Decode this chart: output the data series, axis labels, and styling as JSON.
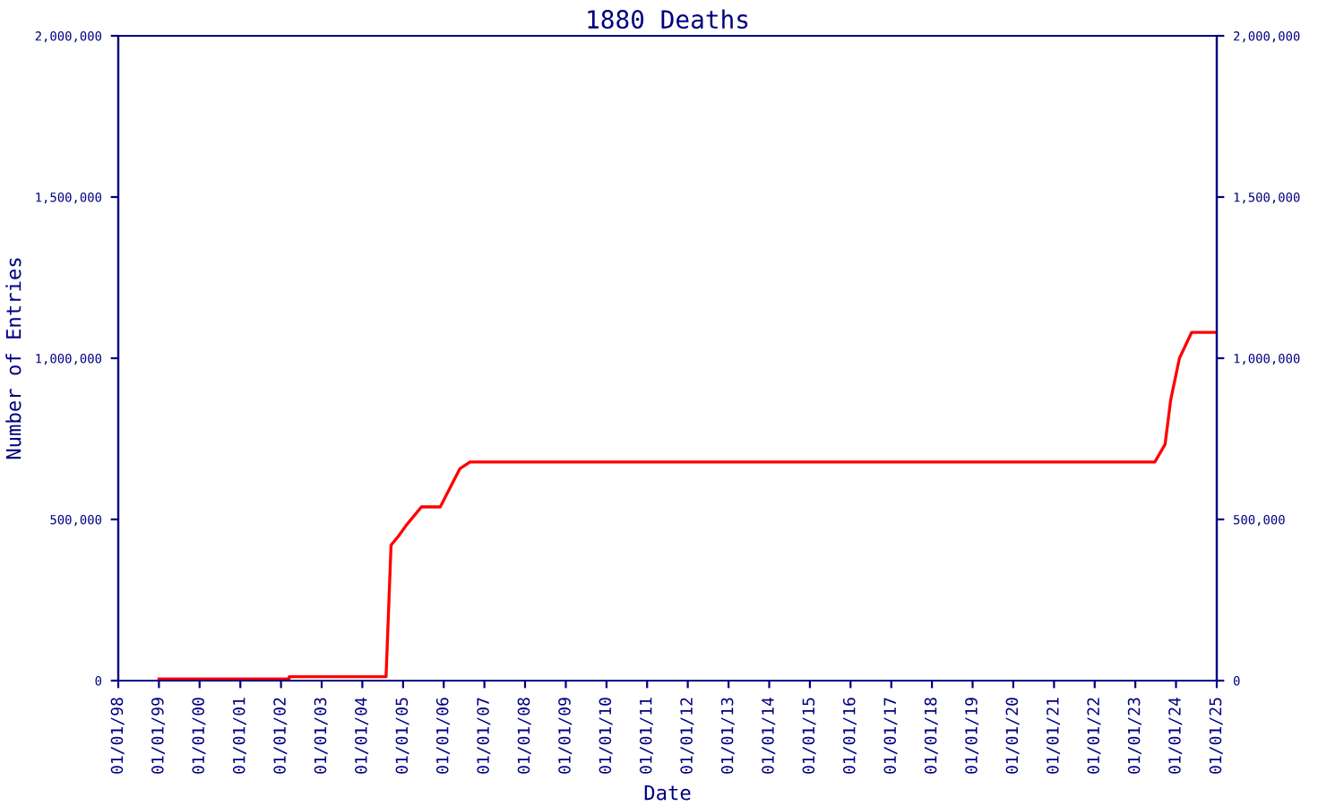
{
  "chart_data": {
    "type": "line",
    "title": "1880 Deaths",
    "xlabel": "Date",
    "ylabel": "Number of Entries",
    "x": [
      "1999-01-01",
      "2002-03-15",
      "2002-03-16",
      "2004-08-01",
      "2004-09-15",
      "2004-11-20",
      "2005-02-01",
      "2005-06-15",
      "2005-12-01",
      "2006-05-25",
      "2006-08-25",
      "2023-06-25",
      "2023-09-25",
      "2023-11-15",
      "2024-02-01",
      "2024-05-20",
      "2025-01-01"
    ],
    "series": [
      {
        "color": "#ff0000",
        "values": [
          5000,
          5000,
          12000,
          12000,
          420000,
          448000,
          483000,
          539000,
          539000,
          657000,
          678000,
          678000,
          733000,
          872000,
          1000000,
          1080000,
          1080000
        ]
      }
    ],
    "xlim": [
      "1998-01-01",
      "2025-01-01"
    ],
    "xticks": [
      {
        "value": "1998-01-01",
        "label": "01/01/98"
      },
      {
        "value": "1999-01-01",
        "label": "01/01/99"
      },
      {
        "value": "2000-01-01",
        "label": "01/01/00"
      },
      {
        "value": "2001-01-01",
        "label": "01/01/01"
      },
      {
        "value": "2002-01-01",
        "label": "01/01/02"
      },
      {
        "value": "2003-01-01",
        "label": "01/01/03"
      },
      {
        "value": "2004-01-01",
        "label": "01/01/04"
      },
      {
        "value": "2005-01-01",
        "label": "01/01/05"
      },
      {
        "value": "2006-01-01",
        "label": "01/01/06"
      },
      {
        "value": "2007-01-01",
        "label": "01/01/07"
      },
      {
        "value": "2008-01-01",
        "label": "01/01/08"
      },
      {
        "value": "2009-01-01",
        "label": "01/01/09"
      },
      {
        "value": "2010-01-01",
        "label": "01/01/10"
      },
      {
        "value": "2011-01-01",
        "label": "01/01/11"
      },
      {
        "value": "2012-01-01",
        "label": "01/01/12"
      },
      {
        "value": "2013-01-01",
        "label": "01/01/13"
      },
      {
        "value": "2014-01-01",
        "label": "01/01/14"
      },
      {
        "value": "2015-01-01",
        "label": "01/01/15"
      },
      {
        "value": "2016-01-01",
        "label": "01/01/16"
      },
      {
        "value": "2017-01-01",
        "label": "01/01/17"
      },
      {
        "value": "2018-01-01",
        "label": "01/01/18"
      },
      {
        "value": "2019-01-01",
        "label": "01/01/19"
      },
      {
        "value": "2020-01-01",
        "label": "01/01/20"
      },
      {
        "value": "2021-01-01",
        "label": "01/01/21"
      },
      {
        "value": "2022-01-01",
        "label": "01/01/22"
      },
      {
        "value": "2023-01-01",
        "label": "01/01/23"
      },
      {
        "value": "2024-01-01",
        "label": "01/01/24"
      },
      {
        "value": "2025-01-01",
        "label": "01/01/25"
      }
    ],
    "ylim": [
      0,
      2000000
    ],
    "yticks": [
      {
        "value": 0,
        "label": "0"
      },
      {
        "value": 500000,
        "label": "500,000"
      },
      {
        "value": 1000000,
        "label": "1,000,000"
      },
      {
        "value": 1500000,
        "label": "1,500,000"
      },
      {
        "value": 2000000,
        "label": "2,000,000"
      }
    ],
    "y2lim": [
      0,
      2000000
    ],
    "y2ticks": [
      {
        "value": 0,
        "label": "0"
      },
      {
        "value": 500000,
        "label": "500,000"
      },
      {
        "value": 1000000,
        "label": "1,000,000"
      },
      {
        "value": 1500000,
        "label": "1,500,000"
      },
      {
        "value": 2000000,
        "label": "2,000,000"
      }
    ],
    "grid": false,
    "marker": "none",
    "line_style": "solid"
  }
}
